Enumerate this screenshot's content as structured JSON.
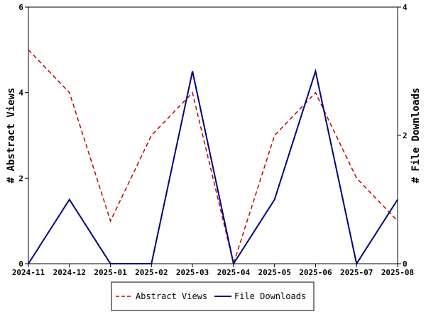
{
  "chart_data": {
    "type": "line",
    "title": "",
    "x": [
      "2024-11",
      "2024-12",
      "2025-01",
      "2025-02",
      "2025-03",
      "2025-04",
      "2025-05",
      "2025-06",
      "2025-07",
      "2025-08"
    ],
    "xlabel": "",
    "y_left": {
      "label": "# Abstract Views",
      "range": [
        0,
        6
      ],
      "ticks": [
        0,
        2,
        4,
        6
      ]
    },
    "y_right": {
      "label": "# File Downloads",
      "range": [
        0,
        4
      ],
      "ticks": [
        0,
        2,
        4
      ]
    },
    "series": [
      {
        "name": "Abstract Views",
        "axis": "left",
        "color": "#c00000",
        "style": "dashed",
        "values": [
          5,
          4,
          1,
          3,
          4,
          0,
          3,
          4,
          2,
          1
        ]
      },
      {
        "name": "File Downloads",
        "axis": "right",
        "color": "#000080",
        "style": "solid",
        "values": [
          0,
          1,
          0,
          0,
          3,
          0,
          1,
          3,
          0,
          1
        ]
      }
    ],
    "legend": "bottom-center",
    "grid": false
  }
}
